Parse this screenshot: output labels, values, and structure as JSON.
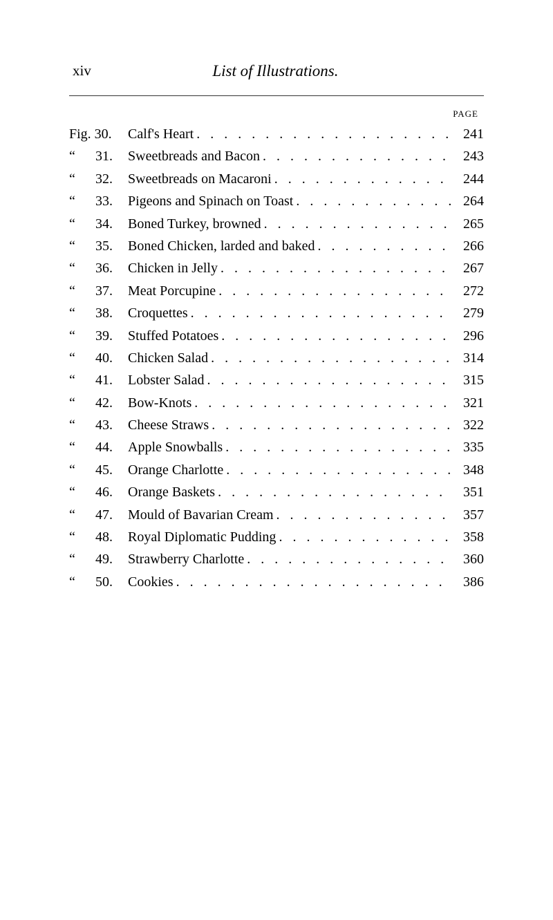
{
  "header": {
    "page_roman": "xiv",
    "title": "List of Illustrations."
  },
  "page_label": "PAGE",
  "fig_word": "Fig.",
  "ditto": "“",
  "entries": [
    {
      "num": "30",
      "title": "Calf's Heart",
      "page": "241"
    },
    {
      "num": "31",
      "title": "Sweetbreads and Bacon",
      "page": "243"
    },
    {
      "num": "32",
      "title": "Sweetbreads on Macaroni",
      "page": "244"
    },
    {
      "num": "33",
      "title": "Pigeons and Spinach on Toast",
      "page": "264"
    },
    {
      "num": "34",
      "title": "Boned Turkey, browned",
      "page": "265"
    },
    {
      "num": "35",
      "title": "Boned Chicken, larded and baked",
      "page": "266"
    },
    {
      "num": "36",
      "title": "Chicken in Jelly",
      "page": "267"
    },
    {
      "num": "37",
      "title": "Meat Porcupine",
      "page": "272"
    },
    {
      "num": "38",
      "title": "Croquettes",
      "page": "279"
    },
    {
      "num": "39",
      "title": "Stuffed Potatoes",
      "page": "296"
    },
    {
      "num": "40",
      "title": "Chicken Salad",
      "page": "314"
    },
    {
      "num": "41",
      "title": "Lobster Salad",
      "page": "315"
    },
    {
      "num": "42",
      "title": "Bow-Knots",
      "page": "321"
    },
    {
      "num": "43",
      "title": "Cheese Straws",
      "page": "322"
    },
    {
      "num": "44",
      "title": "Apple Snowballs",
      "page": "335"
    },
    {
      "num": "45",
      "title": "Orange Charlotte",
      "page": "348"
    },
    {
      "num": "46",
      "title": "Orange Baskets",
      "page": "351"
    },
    {
      "num": "47",
      "title": "Mould of Bavarian Cream",
      "page": "357"
    },
    {
      "num": "48",
      "title": "Royal Diplomatic Pudding",
      "page": "358"
    },
    {
      "num": "49",
      "title": "Strawberry Charlotte",
      "page": "360"
    },
    {
      "num": "50",
      "title": "Cookies",
      "page": "386"
    }
  ]
}
